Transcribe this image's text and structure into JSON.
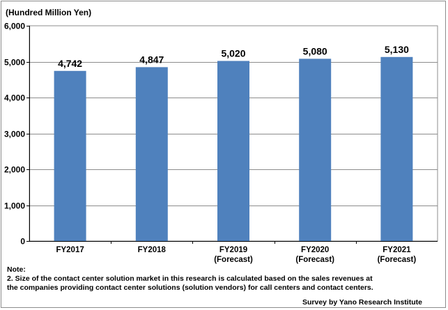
{
  "chart_data": {
    "type": "bar",
    "unit_label": "(Hundred Million Yen)",
    "categories": [
      [
        "FY2017"
      ],
      [
        "FY2018"
      ],
      [
        "FY2019",
        "(Forecast)"
      ],
      [
        "FY2020",
        "(Forecast)"
      ],
      [
        "FY2021",
        "(Forecast)"
      ]
    ],
    "values": [
      4742,
      4847,
      5020,
      5080,
      5130
    ],
    "value_labels": [
      "4,742",
      "4,847",
      "5,020",
      "5,080",
      "5,130"
    ],
    "ylim": [
      0,
      6000
    ],
    "yticks": [
      0,
      1000,
      2000,
      3000,
      4000,
      5000,
      6000
    ],
    "ytick_labels": [
      "0",
      "1,000",
      "2,000",
      "3,000",
      "4,000",
      "5,000",
      "6,000"
    ],
    "grid": true,
    "bar_color": "#4f81bd",
    "grid_color": "#8c8c8c"
  },
  "notes": {
    "heading": "Note:",
    "line1": "2. Size of the contact center solution market in this research is calculated based on the sales revenues at",
    "line2": "the companies providing contact center solutions (solution vendors) for call centers and contact centers."
  },
  "source": "Survey by Yano Research Institute"
}
